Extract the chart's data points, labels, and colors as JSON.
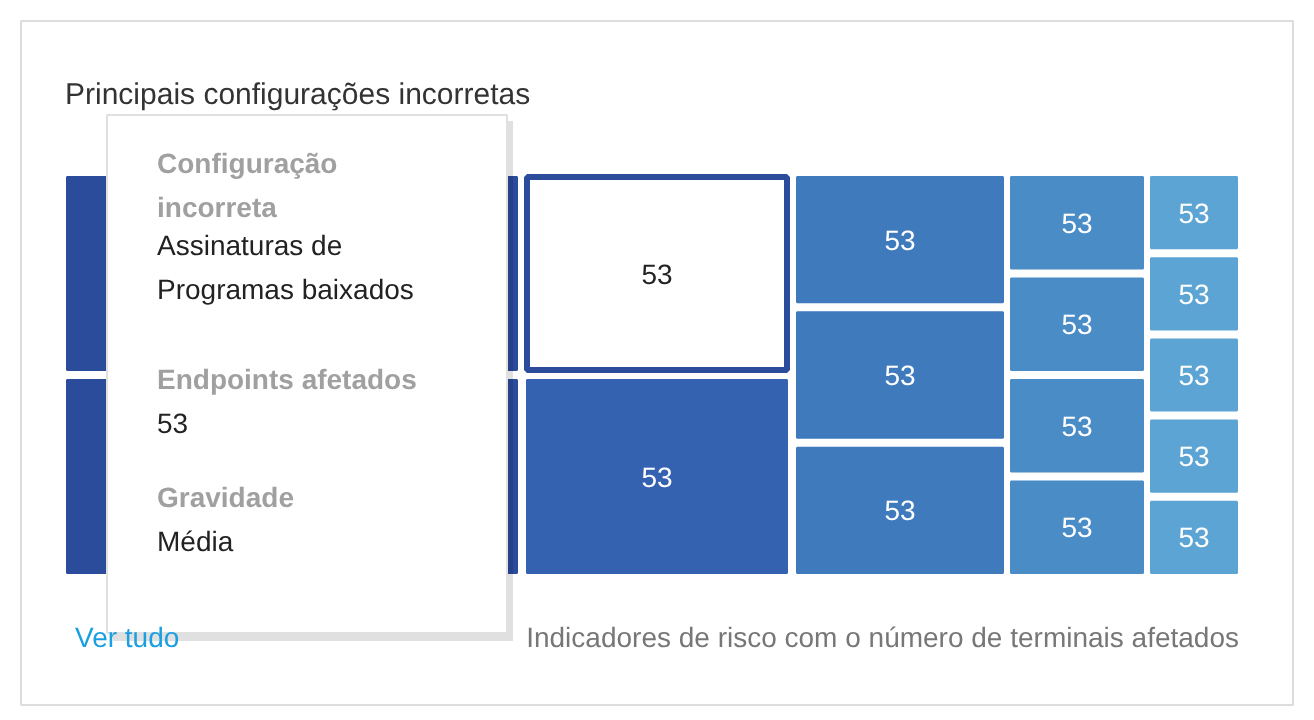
{
  "chart_data": {
    "type": "other",
    "title": "Principais configurações incorretas",
    "categories": [
      null,
      null,
      null,
      null,
      null,
      null,
      null,
      null,
      null,
      null,
      null,
      null,
      null,
      null,
      null,
      null
    ],
    "values": [
      null,
      null,
      53,
      53,
      53,
      53,
      53,
      53,
      53,
      53,
      53,
      53,
      53,
      53,
      53,
      53
    ],
    "colors": [
      "#2b4c9b",
      "#2b4c9b",
      "#ffffff",
      "#3461b0",
      "#3f7abd",
      "#3f7abd",
      "#3f7abd",
      "#4a8cc6",
      "#4a8cc6",
      "#4a8cc6",
      "#4a8cc6",
      "#5ca4d4",
      "#5ca4d4",
      "#5ca4d4",
      "#5ca4d4",
      "#5ca4d4"
    ],
    "data_labels": true,
    "annotations": [
      "Configuração incorreta",
      "Assinaturas de Programas baixados",
      "Endpoints afetados",
      "53",
      "Gravidade",
      "Média",
      "Ver tudo",
      "Indicadores de risco com o número de terminais afetados"
    ]
  }
}
